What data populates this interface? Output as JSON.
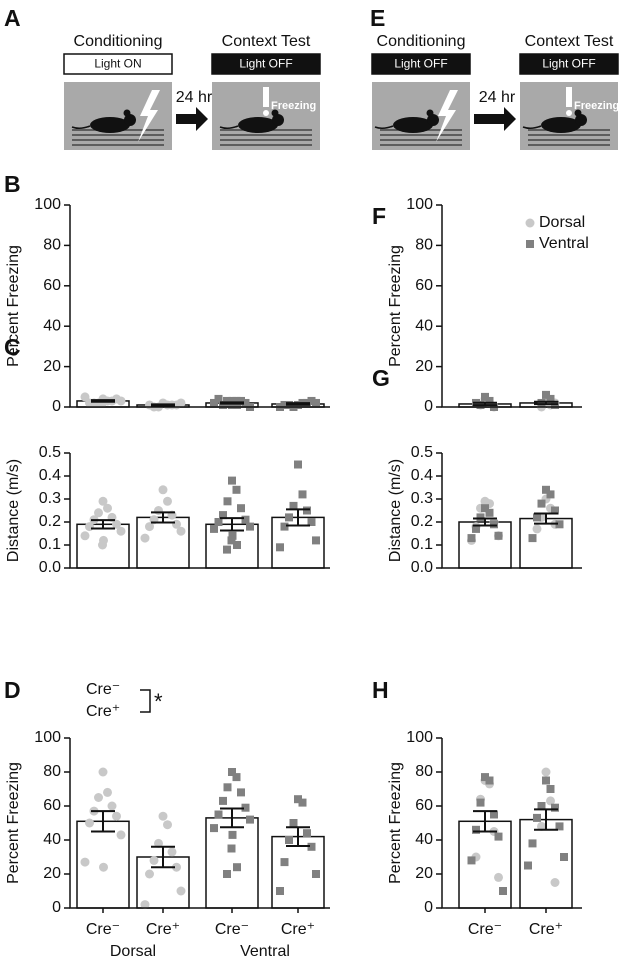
{
  "diagrams": [
    {
      "panel": "A",
      "left_title": "Conditioning",
      "left_label": "Light ON",
      "left_dark": false,
      "arrow_label": "24 hr",
      "right_title": "Context Test",
      "right_label": "Light OFF",
      "right_dark": true,
      "freezing": "Freezing"
    },
    {
      "panel": "E",
      "left_title": "Conditioning",
      "left_label": "Light OFF",
      "left_dark": true,
      "arrow_label": "24 hr",
      "right_title": "Context Test",
      "right_label": "Light OFF",
      "right_dark": true,
      "freezing": "Freezing"
    }
  ],
  "chart_data": [
    {
      "type": "bar",
      "panel": "B",
      "ylabel": "Percent Freezing",
      "ylim": [
        0,
        100
      ],
      "yticks": [
        0,
        20,
        40,
        60,
        80,
        100
      ],
      "values": [
        3,
        1,
        2,
        1.5
      ],
      "errors": [
        0.4,
        0.3,
        0.3,
        0.4
      ],
      "point_sets": [
        {
          "color": "#c8c8c8",
          "marker": "circle",
          "values": [
            [
              4,
              3,
              2,
              3,
              2,
              4,
              2,
              3,
              5,
              3,
              2
            ],
            [
              2,
              1,
              0,
              1,
              0,
              1,
              1,
              2
            ],
            [],
            []
          ]
        },
        {
          "color": "#808080",
          "marker": "square",
          "values": [
            [],
            [],
            [
              1,
              3,
              2,
              3,
              1,
              2,
              4,
              0,
              2,
              3,
              2,
              1,
              3
            ],
            [
              1,
              2,
              0,
              2,
              1,
              3,
              1,
              2,
              0
            ]
          ]
        }
      ]
    },
    {
      "type": "bar",
      "panel": "C",
      "ylabel": "Distance (m/s)",
      "ylim": [
        0,
        0.5
      ],
      "yticks": [
        {
          "value": 0,
          "label": "0.0"
        },
        0.1,
        0.2,
        0.3,
        0.4,
        0.5
      ],
      "values": [
        0.19,
        0.22,
        0.19,
        0.22
      ],
      "errors": [
        0.018,
        0.022,
        0.027,
        0.035
      ],
      "point_sets": [
        {
          "color": "#c8c8c8",
          "marker": "circle",
          "values": [
            [
              0.29,
              0.26,
              0.24,
              0.22,
              0.21,
              0.19,
              0.18,
              0.16,
              0.14,
              0.12,
              0.1
            ],
            [
              0.34,
              0.29,
              0.25,
              0.23,
              0.21,
              0.19,
              0.18,
              0.16,
              0.13
            ],
            [],
            []
          ]
        },
        {
          "color": "#808080",
          "marker": "square",
          "values": [
            [],
            [],
            [
              0.38,
              0.34,
              0.29,
              0.26,
              0.23,
              0.21,
              0.2,
              0.18,
              0.17,
              0.14,
              0.12,
              0.1,
              0.08
            ],
            [
              0.45,
              0.32,
              0.27,
              0.25,
              0.22,
              0.2,
              0.18,
              0.12,
              0.09
            ]
          ]
        }
      ]
    },
    {
      "type": "bar",
      "panel": "D",
      "ylabel": "Percent Freezing",
      "ylim": [
        0,
        100
      ],
      "yticks": [
        0,
        20,
        40,
        60,
        80,
        100
      ],
      "categories": [
        "Cre⁻",
        "Cre⁺",
        "Cre⁻",
        "Cre⁺"
      ],
      "groups": [
        "Dorsal",
        "Ventral"
      ],
      "values": [
        51,
        30,
        53,
        42
      ],
      "errors": [
        6,
        6,
        5.5,
        5.5
      ],
      "annotation": {
        "labels": [
          "Cre⁻",
          "Cre⁺"
        ],
        "mark": "*"
      },
      "point_sets": [
        {
          "color": "#c8c8c8",
          "marker": "circle",
          "values": [
            [
              80,
              68,
              65,
              60,
              57,
              54,
              50,
              43,
              27,
              24
            ],
            [
              54,
              49,
              38,
              33,
              28,
              24,
              20,
              10,
              2
            ],
            [],
            []
          ]
        },
        {
          "color": "#808080",
          "marker": "square",
          "values": [
            [],
            [],
            [
              80,
              77,
              71,
              68,
              63,
              59,
              55,
              52,
              47,
              43,
              35,
              24,
              20
            ],
            [
              64,
              62,
              50,
              44,
              40,
              36,
              27,
              20,
              10
            ]
          ]
        }
      ]
    },
    {
      "type": "bar",
      "panel": "F",
      "ylabel": "Percent Freezing",
      "ylim": [
        0,
        100
      ],
      "yticks": [
        0,
        20,
        40,
        60,
        80,
        100
      ],
      "values": [
        1.5,
        2
      ],
      "errors": [
        0.6,
        0.6
      ],
      "legend": [
        {
          "name": "Dorsal",
          "color": "#c8c8c8",
          "marker": "circle"
        },
        {
          "name": "Ventral",
          "color": "#808080",
          "marker": "square"
        }
      ],
      "point_sets": [
        {
          "color": "#c8c8c8",
          "marker": "circle",
          "values": [
            [
              4,
              2,
              1,
              0
            ],
            [
              3,
              1,
              0,
              2
            ]
          ]
        },
        {
          "color": "#808080",
          "marker": "square",
          "values": [
            [
              5,
              3,
              1,
              0,
              2
            ],
            [
              6,
              4,
              2,
              1
            ]
          ]
        }
      ]
    },
    {
      "type": "bar",
      "panel": "G",
      "ylabel": "Distance (m/s)",
      "ylim": [
        0,
        0.5
      ],
      "yticks": [
        {
          "value": 0,
          "label": "0.0"
        },
        0.1,
        0.2,
        0.3,
        0.4,
        0.5
      ],
      "values": [
        0.2,
        0.215
      ],
      "errors": [
        0.015,
        0.022
      ],
      "point_sets": [
        {
          "color": "#c8c8c8",
          "marker": "circle",
          "values": [
            [
              0.29,
              0.28,
              0.26,
              0.2,
              0.18,
              0.14,
              0.12
            ],
            [
              0.3,
              0.26,
              0.22,
              0.19,
              0.17
            ]
          ]
        },
        {
          "color": "#808080",
          "marker": "square",
          "values": [
            [
              0.26,
              0.24,
              0.22,
              0.19,
              0.17,
              0.14,
              0.13
            ],
            [
              0.34,
              0.32,
              0.28,
              0.25,
              0.22,
              0.19,
              0.13
            ]
          ]
        }
      ]
    },
    {
      "type": "bar",
      "panel": "H",
      "ylabel": "Percent Freezing",
      "ylim": [
        0,
        100
      ],
      "yticks": [
        0,
        20,
        40,
        60,
        80,
        100
      ],
      "categories": [
        "Cre⁻",
        "Cre⁺"
      ],
      "values": [
        51,
        52
      ],
      "errors": [
        6,
        6
      ],
      "point_sets": [
        {
          "color": "#c8c8c8",
          "marker": "circle",
          "values": [
            [
              75,
              73,
              64,
              45,
              30,
              18
            ],
            [
              80,
              63,
              48,
              15
            ]
          ]
        },
        {
          "color": "#808080",
          "marker": "square",
          "values": [
            [
              77,
              75,
              62,
              55,
              46,
              42,
              28,
              10
            ],
            [
              75,
              70,
              60,
              59,
              53,
              48,
              38,
              30,
              25
            ]
          ]
        }
      ]
    }
  ]
}
